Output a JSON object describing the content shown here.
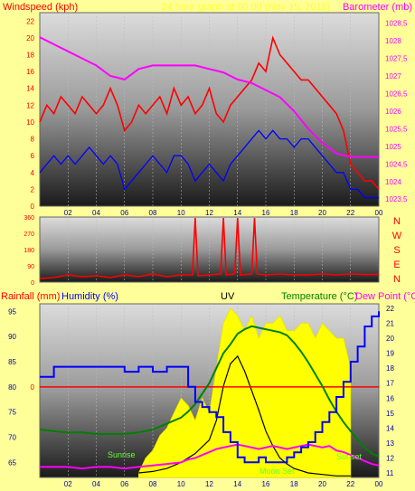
{
  "panel1": {
    "left_title": "Windspeed (kph)",
    "center_title": "24 hour graph at 00:00 (Nov 15, 2018)",
    "right_title": "Barometer (mb)"
  },
  "panel2": {
    "dir_labels": [
      "N",
      "W",
      "S",
      "E",
      "N"
    ]
  },
  "panel3": {
    "rainfall_title": "Rainfall (mm)",
    "humidity_title": "Humidity (%)",
    "uv_title": "UV",
    "temperature_title": "Temperature (°C)",
    "dewpoint_title": "Dew Point (°C)",
    "annotations": {
      "sunrise": "Sunrise",
      "moonset": "Moon Set",
      "sunset": "Sunset"
    }
  },
  "colors": {
    "background": "#ffff99",
    "wind_gust": "#ff0000",
    "wind_avg": "#0000ff",
    "barometer": "#ff00ff",
    "wind_dir": "#ff0000",
    "humidity": "#0000ff",
    "temperature": "#008000",
    "dewpoint": "#ff00ff",
    "uv_fill": "#ffff00",
    "solar": "#000000",
    "rain_zero": "#ff0000",
    "left_label": "#ff0000",
    "right_label": "#ff00ff",
    "temp_label": "#008000",
    "axis_text": "#0000aa"
  },
  "chart_data": [
    {
      "type": "line",
      "name": "wind-baro",
      "x_ticks": [
        "02",
        "04",
        "06",
        "08",
        "10",
        "12",
        "14",
        "16",
        "18",
        "20",
        "22",
        "00"
      ],
      "x_start_hour": 0,
      "x_end_hour": 24,
      "y_left": {
        "ticks": [
          0,
          2,
          4,
          6,
          8,
          10,
          12,
          14,
          16,
          18,
          20,
          22
        ],
        "ylim": [
          0,
          23
        ]
      },
      "y_right": {
        "ticks": [
          "1023,5",
          "1024",
          "1024,5",
          "1025",
          "1025,5",
          "1026",
          "1026,5",
          "1027",
          "1027,5",
          "1028",
          "1028,5"
        ],
        "ylim": [
          1023.3,
          1028.8
        ]
      },
      "series": [
        {
          "axis": "left",
          "x": [
            0,
            0.5,
            1,
            1.5,
            2,
            2.5,
            3,
            3.5,
            4,
            4.5,
            5,
            5.5,
            6,
            6.5,
            7,
            7.5,
            8,
            8.5,
            9,
            9.5,
            10,
            10.5,
            11,
            11.5,
            12,
            12.5,
            13,
            13.5,
            14,
            14.5,
            15,
            15.5,
            16,
            16.5,
            17,
            17.5,
            18,
            18.5,
            19,
            19.5,
            20,
            20.5,
            21,
            21.5,
            22,
            22.5,
            23,
            23.5,
            24
          ],
          "values": [
            10,
            12,
            11,
            13,
            12,
            11,
            13,
            12,
            11,
            12,
            14,
            12,
            9,
            10,
            12,
            11,
            12,
            13,
            11,
            14,
            12,
            13,
            11,
            12,
            14,
            11,
            10,
            12,
            13,
            14,
            15,
            17,
            16,
            20,
            18,
            17,
            16,
            15,
            15,
            14,
            13,
            12,
            11,
            9,
            5,
            4,
            3,
            3,
            2
          ],
          "kind": "gust"
        },
        {
          "axis": "left",
          "x": [
            0,
            0.5,
            1,
            1.5,
            2,
            2.5,
            3,
            3.5,
            4,
            4.5,
            5,
            5.5,
            6,
            6.5,
            7,
            7.5,
            8,
            8.5,
            9,
            9.5,
            10,
            10.5,
            11,
            11.5,
            12,
            12.5,
            13,
            13.5,
            14,
            14.5,
            15,
            15.5,
            16,
            16.5,
            17,
            17.5,
            18,
            18.5,
            19,
            19.5,
            20,
            20.5,
            21,
            21.5,
            22,
            22.5,
            23,
            23.5,
            24
          ],
          "values": [
            4,
            5,
            6,
            5,
            6,
            5,
            6,
            7,
            6,
            5,
            6,
            5,
            2,
            3,
            4,
            5,
            6,
            5,
            4,
            6,
            6,
            5,
            3,
            4,
            5,
            4,
            3,
            5,
            6,
            7,
            8,
            9,
            8,
            9,
            8,
            8,
            7,
            8,
            8,
            7,
            6,
            5,
            4,
            4,
            2,
            2,
            1,
            1,
            1
          ],
          "kind": "average"
        },
        {
          "axis": "right",
          "x": [
            0,
            1,
            2,
            3,
            4,
            5,
            6,
            7,
            8,
            9,
            10,
            11,
            12,
            13,
            14,
            15,
            16,
            17,
            18,
            19,
            20,
            21,
            22,
            23,
            24
          ],
          "values": [
            1028.1,
            1027.9,
            1027.7,
            1027.5,
            1027.3,
            1027.0,
            1026.9,
            1027.2,
            1027.3,
            1027.3,
            1027.3,
            1027.3,
            1027.2,
            1027.1,
            1026.9,
            1026.8,
            1026.6,
            1026.4,
            1026.0,
            1025.5,
            1025.1,
            1024.8,
            1024.7,
            1024.7,
            1024.7
          ],
          "kind": "barometer"
        }
      ]
    },
    {
      "type": "line",
      "name": "wind-direction",
      "x_ticks": [
        "02",
        "04",
        "06",
        "08",
        "10",
        "12",
        "14",
        "16",
        "18",
        "20",
        "22",
        "00"
      ],
      "y_ticks": [
        0,
        90,
        180,
        270,
        360
      ],
      "ylim": [
        0,
        360
      ],
      "x": [
        0,
        1,
        2,
        3,
        4,
        5,
        6,
        7,
        8,
        9,
        10,
        10.8,
        11,
        11.2,
        12,
        12.8,
        13,
        13.2,
        13.8,
        14,
        14.2,
        15,
        15.2,
        15.4,
        16,
        17,
        18,
        19,
        20,
        21,
        22,
        23,
        24
      ],
      "values": [
        20,
        25,
        40,
        30,
        35,
        25,
        40,
        30,
        45,
        30,
        40,
        40,
        355,
        35,
        40,
        45,
        355,
        40,
        45,
        355,
        40,
        45,
        355,
        45,
        40,
        45,
        40,
        40,
        45,
        40,
        45,
        42,
        42
      ]
    },
    {
      "type": "line",
      "name": "temp-humidity-uv",
      "x_ticks": [
        "02",
        "04",
        "06",
        "08",
        "10",
        "12",
        "14",
        "16",
        "18",
        "20",
        "22",
        "00"
      ],
      "y_left": {
        "ticks": [
          65,
          70,
          75,
          80,
          85,
          90,
          95
        ],
        "ylim": [
          62,
          96.5
        ]
      },
      "y_right": {
        "ticks": [
          11,
          12,
          13,
          14,
          15,
          16,
          17,
          18,
          19,
          20,
          21,
          22
        ],
        "ylim": [
          10.7,
          22.3
        ]
      },
      "rain_zero": 0,
      "series": [
        {
          "axis": "left",
          "kind": "humidity",
          "x": [
            0,
            1,
            2,
            3,
            4,
            5,
            6,
            7,
            8,
            9,
            10,
            10.5,
            11,
            11.5,
            12,
            12.5,
            13,
            13.5,
            14,
            14.5,
            15,
            15.5,
            16,
            16.5,
            17,
            17.5,
            18,
            18.5,
            19,
            19.5,
            20,
            20.5,
            21,
            21.5,
            22,
            22.5,
            23,
            23.5,
            24
          ],
          "values": [
            82,
            84,
            84,
            84,
            84,
            84,
            83,
            84,
            83,
            84,
            84,
            80,
            77,
            76,
            75,
            74,
            71,
            69,
            66,
            65,
            65,
            66,
            65,
            65,
            65,
            66,
            67,
            68,
            69,
            71,
            73,
            75,
            78,
            81,
            85,
            88,
            92,
            94,
            95
          ]
        },
        {
          "axis": "right",
          "kind": "temperature",
          "x": [
            0,
            1,
            2,
            3,
            4,
            5,
            6,
            7,
            8,
            9,
            10,
            10.5,
            11,
            11.5,
            12,
            12.5,
            13,
            13.5,
            14,
            14.5,
            15,
            15.5,
            16,
            16.5,
            17,
            17.5,
            18,
            18.5,
            19,
            19.5,
            20,
            20.5,
            21,
            21.5,
            22,
            22.5,
            23,
            23.5,
            24
          ],
          "values": [
            13.9,
            13.8,
            13.7,
            13.7,
            13.6,
            13.6,
            13.6,
            13.7,
            13.9,
            14.3,
            14.7,
            15.1,
            15.6,
            16.3,
            17.0,
            18.0,
            19.0,
            19.6,
            20.3,
            20.6,
            20.8,
            20.7,
            20.6,
            20.5,
            20.4,
            20.2,
            19.7,
            19.1,
            18.4,
            17.6,
            16.8,
            15.9,
            15.1,
            14.4,
            13.8,
            13.2,
            12.7,
            12.3,
            12.1
          ]
        },
        {
          "axis": "right",
          "kind": "dewpoint",
          "x": [
            0,
            1,
            2,
            3,
            4,
            5,
            6,
            7,
            8,
            9,
            10,
            10.5,
            11,
            11.5,
            12,
            12.5,
            13,
            13.5,
            14,
            14.5,
            15,
            15.5,
            16,
            16.5,
            17,
            17.5,
            18,
            18.5,
            19,
            19.5,
            20,
            20.5,
            21,
            21.5,
            22,
            22.5,
            23,
            23.5,
            24
          ],
          "values": [
            11.4,
            11.4,
            11.4,
            11.3,
            11.4,
            11.4,
            11.3,
            11.4,
            11.5,
            11.6,
            11.7,
            11.9,
            12.0,
            12.2,
            12.4,
            12.6,
            12.7,
            12.8,
            12.9,
            12.8,
            12.7,
            12.6,
            12.7,
            12.8,
            12.7,
            12.6,
            12.7,
            12.8,
            12.9,
            12.8,
            12.7,
            12.8,
            12.5,
            12.4,
            12.2,
            12.0,
            11.8,
            11.6,
            11.5
          ]
        },
        {
          "axis": "right",
          "kind": "uv",
          "x": [
            7,
            7.5,
            8,
            8.5,
            9,
            9.5,
            10,
            10.5,
            11,
            11.5,
            12,
            12.5,
            13,
            13.5,
            14,
            14.5,
            15,
            15.5,
            16,
            16.5,
            17,
            17.5,
            18,
            18.5,
            19,
            19.5,
            20,
            20.5,
            21,
            21.5,
            22
          ],
          "values": [
            11,
            12,
            12.5,
            13.5,
            14,
            15,
            16,
            15.5,
            14.5,
            16,
            15,
            18,
            21,
            22,
            21.5,
            20.5,
            21.5,
            20,
            21,
            21,
            21.5,
            20.5,
            20.5,
            21,
            21,
            20,
            21,
            20.5,
            20,
            20,
            18
          ]
        },
        {
          "axis": "right",
          "kind": "solar",
          "x": [
            7,
            8,
            9,
            10,
            11,
            12,
            12.5,
            13,
            13.5,
            14,
            14.5,
            15,
            15.5,
            16,
            16.5,
            17,
            17.5,
            18,
            19,
            20,
            21,
            22
          ],
          "values": [
            11,
            11.1,
            11.3,
            11.7,
            12.3,
            13.2,
            14.5,
            16.8,
            18.3,
            18.8,
            17.8,
            16.5,
            15.2,
            13.8,
            12.8,
            12.0,
            11.6,
            11.3,
            11.0,
            10.9,
            10.8,
            10.8
          ]
        }
      ]
    }
  ]
}
